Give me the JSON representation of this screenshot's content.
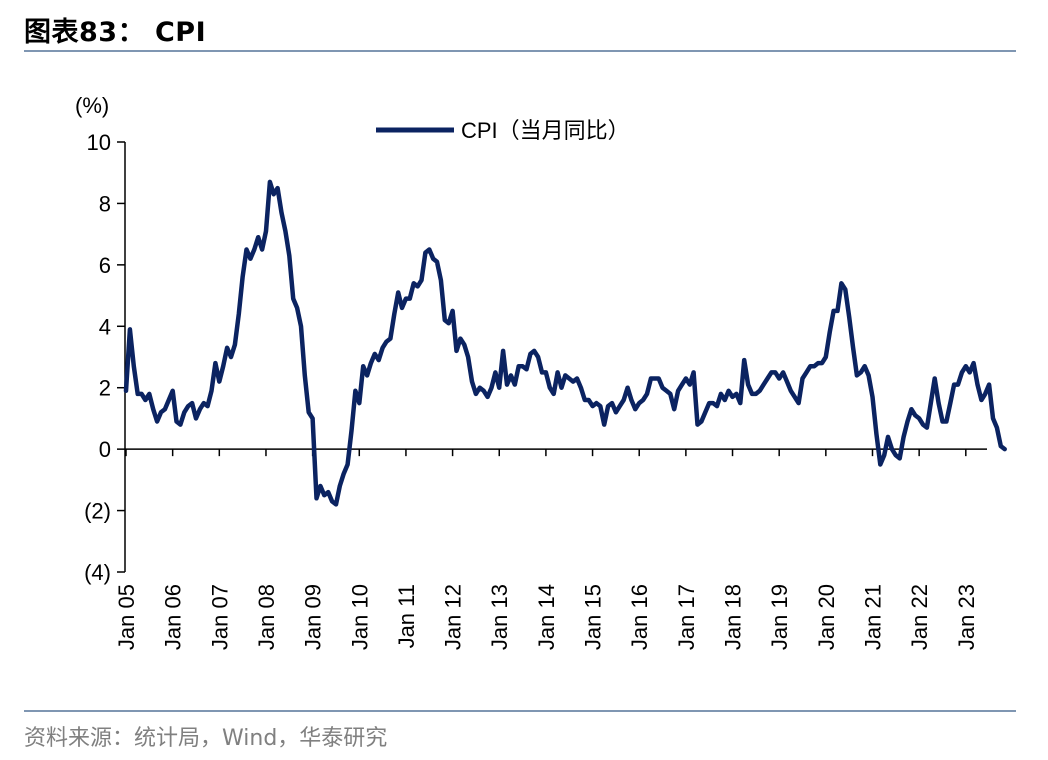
{
  "header": {
    "title": "图表83：  CPI"
  },
  "footer": {
    "source": "资料来源：统计局，Wind，华泰研究"
  },
  "chart_data": {
    "type": "line",
    "ylabel": "(%)",
    "ylim": [
      -4,
      10
    ],
    "yticks": [
      10,
      8,
      6,
      4,
      2,
      0,
      -2,
      -4
    ],
    "ytick_labels": [
      "10",
      "8",
      "6",
      "4",
      "2",
      "0",
      "(2)",
      "(4)"
    ],
    "xtick_labels": [
      "Jan 05",
      "Jan 06",
      "Jan 07",
      "Jan 08",
      "Jan 09",
      "Jan 10",
      "Jan 11",
      "Jan 12",
      "Jan 13",
      "Jan 14",
      "Jan 15",
      "Jan 16",
      "Jan 17",
      "Jan 18",
      "Jan 19",
      "Jan 20",
      "Jan 21",
      "Jan 22",
      "Jan 23"
    ],
    "legend_position": "top-center",
    "line_color": "#0b2361",
    "series": [
      {
        "name": "CPI（当月同比）",
        "start": "2005-01",
        "values": [
          1.9,
          3.9,
          2.7,
          1.8,
          1.8,
          1.6,
          1.8,
          1.3,
          0.9,
          1.2,
          1.3,
          1.6,
          1.9,
          0.9,
          0.8,
          1.2,
          1.4,
          1.5,
          1.0,
          1.3,
          1.5,
          1.4,
          1.9,
          2.8,
          2.2,
          2.7,
          3.3,
          3.0,
          3.4,
          4.4,
          5.6,
          6.5,
          6.2,
          6.5,
          6.9,
          6.5,
          7.1,
          8.7,
          8.3,
          8.5,
          7.7,
          7.1,
          6.3,
          4.9,
          4.6,
          4.0,
          2.4,
          1.2,
          1.0,
          -1.6,
          -1.2,
          -1.5,
          -1.4,
          -1.7,
          -1.8,
          -1.2,
          -0.8,
          -0.5,
          0.6,
          1.9,
          1.5,
          2.7,
          2.4,
          2.8,
          3.1,
          2.9,
          3.3,
          3.5,
          3.6,
          4.4,
          5.1,
          4.6,
          4.9,
          4.9,
          5.4,
          5.3,
          5.5,
          6.4,
          6.5,
          6.2,
          6.1,
          5.5,
          4.2,
          4.1,
          4.5,
          3.2,
          3.6,
          3.4,
          3.0,
          2.2,
          1.8,
          2.0,
          1.9,
          1.7,
          2.0,
          2.5,
          2.0,
          3.2,
          2.1,
          2.4,
          2.1,
          2.7,
          2.7,
          2.6,
          3.1,
          3.2,
          3.0,
          2.5,
          2.5,
          2.0,
          1.8,
          2.5,
          2.0,
          2.4,
          2.3,
          2.2,
          2.3,
          2.0,
          1.6,
          1.6,
          1.4,
          1.5,
          1.4,
          0.8,
          1.4,
          1.5,
          1.2,
          1.4,
          1.6,
          2.0,
          1.6,
          1.3,
          1.5,
          1.6,
          1.8,
          2.3,
          2.3,
          2.3,
          2.0,
          1.9,
          1.8,
          1.3,
          1.9,
          2.1,
          2.3,
          2.1,
          2.5,
          0.8,
          0.9,
          1.2,
          1.5,
          1.5,
          1.4,
          1.8,
          1.6,
          1.9,
          1.7,
          1.8,
          1.5,
          2.9,
          2.1,
          1.8,
          1.8,
          1.9,
          2.1,
          2.3,
          2.5,
          2.5,
          2.3,
          2.5,
          2.2,
          1.9,
          1.7,
          1.5,
          2.3,
          2.5,
          2.7,
          2.7,
          2.8,
          2.8,
          3.0,
          3.8,
          4.5,
          4.5,
          5.4,
          5.2,
          4.3,
          3.3,
          2.4,
          2.5,
          2.7,
          2.4,
          1.7,
          0.5,
          -0.5,
          -0.2,
          0.4,
          0.0,
          -0.2,
          -0.3,
          0.4,
          0.9,
          1.3,
          1.1,
          1.0,
          0.8,
          0.7,
          1.5,
          2.3,
          1.5,
          0.9,
          0.9,
          1.5,
          2.1,
          2.1,
          2.5,
          2.7,
          2.5,
          2.8,
          2.1,
          1.6,
          1.8,
          2.1,
          1.0,
          0.7,
          0.1,
          0.0
        ]
      }
    ]
  }
}
